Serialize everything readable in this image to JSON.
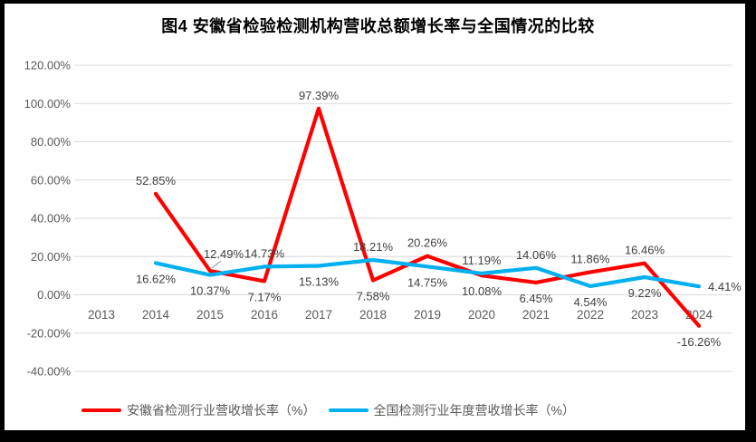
{
  "title": "图4 安徽省检验检测机构营收总额增长率与全国情况的比较",
  "colors": {
    "anhui_line": "#FF0000",
    "national_line": "#00B0F0",
    "gridline": "#D9D9D9",
    "axis_text": "#595959",
    "data_label_text": "#404040",
    "leader_line": "#A6A6A6",
    "frame_border": "#000000"
  },
  "chart_data": {
    "type": "line",
    "title": "图4 安徽省检验检测机构营收总额增长率与全国情况的比较",
    "categories": [
      "2013",
      "2014",
      "2015",
      "2016",
      "2017",
      "2018",
      "2019",
      "2020",
      "2021",
      "2022",
      "2023",
      "2024"
    ],
    "y_axis": {
      "ylim": [
        -40,
        120
      ],
      "tick_values": [
        120,
        100,
        80,
        60,
        40,
        20,
        0,
        -20,
        -40
      ],
      "tick_labels": [
        "120.00%",
        "100.00%",
        "80.00%",
        "60.00%",
        "40.00%",
        "20.00%",
        "0.00%",
        "-20.00%",
        "-40.00%"
      ]
    },
    "grid": true,
    "legend_position": "bottom",
    "series": [
      {
        "name": "安徽省检测行业营收增长率（%）",
        "color_key": "anhui_line",
        "values": [
          null,
          52.85,
          12.49,
          7.17,
          97.39,
          7.58,
          20.26,
          10.08,
          6.45,
          11.86,
          16.46,
          -16.26
        ],
        "data_labels": [
          null,
          "52.85%",
          "12.49%",
          "7.17%",
          "97.39%",
          "7.58%",
          "20.26%",
          "10.08%",
          "6.45%",
          "11.86%",
          "16.46%",
          "-16.26%"
        ],
        "label_placement": [
          null,
          "above",
          "above-leader",
          "below",
          "above",
          "below",
          "above",
          "below",
          "below",
          "above",
          "above",
          "below"
        ]
      },
      {
        "name": "全国检测行业年度营收增长率（%）",
        "color_key": "national_line",
        "values": [
          null,
          16.62,
          10.37,
          14.73,
          15.13,
          18.21,
          14.75,
          11.19,
          14.06,
          4.54,
          9.22,
          4.41
        ],
        "data_labels": [
          null,
          "16.62%",
          "10.37%",
          "14.73%",
          "15.13%",
          "18.21%",
          "14.75%",
          "11.19%",
          "14.06%",
          "4.54%",
          "9.22%",
          "4.41%"
        ],
        "label_placement": [
          null,
          "below",
          "below",
          "above",
          "below",
          "above",
          "below",
          "above",
          "above",
          "below",
          "below",
          "right"
        ]
      }
    ]
  },
  "legend": {
    "items": [
      {
        "label": "安徽省检测行业营收增长率（%）"
      },
      {
        "label": "全国检测行业年度营收增长率（%）"
      }
    ]
  }
}
